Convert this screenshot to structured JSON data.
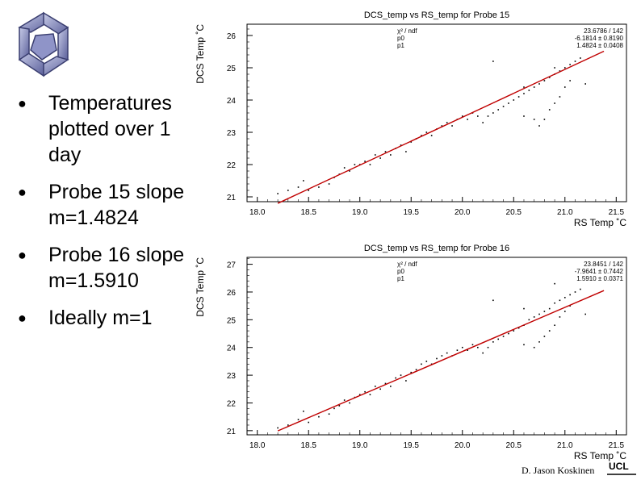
{
  "slide": {
    "bullets": [
      "Temperatures plotted over 1 day",
      "Probe 15 slope m=1.4824",
      "Probe 16 slope m=1.5910",
      "Ideally m=1"
    ],
    "author": "D. Jason Koskinen",
    "logo_icon": "star-of-david-knot-icon",
    "institution_logo_text": "UCL"
  },
  "chart_data": [
    {
      "type": "scatter",
      "title": "DCS_temp vs RS_temp for Probe 15",
      "xlabel": "RS Temp ˚C",
      "ylabel": "DCS Temp ˚C",
      "xlim": [
        17.9,
        21.6
      ],
      "ylim": [
        20.85,
        26.35
      ],
      "xticks": [
        "18.0",
        "18.5",
        "19.0",
        "19.5",
        "20.0",
        "20.5",
        "21.0",
        "21.5"
      ],
      "yticks": [
        "21",
        "22",
        "23",
        "24",
        "25",
        "26"
      ],
      "stats": [
        {
          "label": "χ² / ndf",
          "value": "23.6786 / 142"
        },
        {
          "label": "p0",
          "value": "-6.1814 ± 0.8190"
        },
        {
          "label": "p1",
          "value": "1.4824 ± 0.0408"
        }
      ],
      "fit": {
        "p0": -6.1814,
        "p1": 1.4824,
        "color": "#c00000"
      },
      "points": [
        [
          18.2,
          21.1
        ],
        [
          18.3,
          21.2
        ],
        [
          18.4,
          21.3
        ],
        [
          18.45,
          21.5
        ],
        [
          18.5,
          21.2
        ],
        [
          18.6,
          21.3
        ],
        [
          18.7,
          21.4
        ],
        [
          18.75,
          21.6
        ],
        [
          18.8,
          21.7
        ],
        [
          18.85,
          21.9
        ],
        [
          18.9,
          21.8
        ],
        [
          18.95,
          22.0
        ],
        [
          19.0,
          22.0
        ],
        [
          19.05,
          22.1
        ],
        [
          19.1,
          22.0
        ],
        [
          19.15,
          22.3
        ],
        [
          19.2,
          22.2
        ],
        [
          19.25,
          22.4
        ],
        [
          19.3,
          22.3
        ],
        [
          19.35,
          22.5
        ],
        [
          19.4,
          22.6
        ],
        [
          19.45,
          22.4
        ],
        [
          19.5,
          22.7
        ],
        [
          19.55,
          22.8
        ],
        [
          19.6,
          22.9
        ],
        [
          19.65,
          23.0
        ],
        [
          19.7,
          22.9
        ],
        [
          19.75,
          23.1
        ],
        [
          19.8,
          23.2
        ],
        [
          19.85,
          23.3
        ],
        [
          19.9,
          23.2
        ],
        [
          19.95,
          23.4
        ],
        [
          20.0,
          23.5
        ],
        [
          20.05,
          23.4
        ],
        [
          20.1,
          23.6
        ],
        [
          20.15,
          23.5
        ],
        [
          20.2,
          23.3
        ],
        [
          20.25,
          23.5
        ],
        [
          20.3,
          23.6
        ],
        [
          20.35,
          23.7
        ],
        [
          20.4,
          23.8
        ],
        [
          20.45,
          23.9
        ],
        [
          20.5,
          24.0
        ],
        [
          20.55,
          24.1
        ],
        [
          20.6,
          24.2
        ],
        [
          20.65,
          24.3
        ],
        [
          20.7,
          24.4
        ],
        [
          20.75,
          24.5
        ],
        [
          20.8,
          24.6
        ],
        [
          20.85,
          24.7
        ],
        [
          20.9,
          24.8
        ],
        [
          20.95,
          24.9
        ],
        [
          21.0,
          25.0
        ],
        [
          21.05,
          25.1
        ],
        [
          21.1,
          25.2
        ],
        [
          21.15,
          25.3
        ],
        [
          20.3,
          25.2
        ],
        [
          20.6,
          23.5
        ],
        [
          20.7,
          23.4
        ],
        [
          20.75,
          23.2
        ],
        [
          20.8,
          23.4
        ],
        [
          20.85,
          23.7
        ],
        [
          20.9,
          23.9
        ],
        [
          20.95,
          24.1
        ],
        [
          21.0,
          24.4
        ],
        [
          21.05,
          24.6
        ],
        [
          21.2,
          24.5
        ],
        [
          20.9,
          25.0
        ],
        [
          20.6,
          24.4
        ]
      ]
    },
    {
      "type": "scatter",
      "title": "DCS_temp vs RS_temp for Probe 16",
      "xlabel": "RS Temp ˚C",
      "ylabel": "DCS Temp ˚C",
      "xlim": [
        17.9,
        21.6
      ],
      "ylim": [
        20.85,
        27.25
      ],
      "xticks": [
        "18.0",
        "18.5",
        "19.0",
        "19.5",
        "20.0",
        "20.5",
        "21.0",
        "21.5"
      ],
      "yticks": [
        "21",
        "22",
        "23",
        "24",
        "25",
        "26",
        "27"
      ],
      "stats": [
        {
          "label": "χ² / ndf",
          "value": "23.8451 / 142"
        },
        {
          "label": "p0",
          "value": "-7.9641 ± 0.7442"
        },
        {
          "label": "p1",
          "value": "1.5910 ± 0.0371"
        }
      ],
      "fit": {
        "p0": -7.9641,
        "p1": 1.591,
        "color": "#c00000"
      },
      "points": [
        [
          18.2,
          21.1
        ],
        [
          18.3,
          21.2
        ],
        [
          18.4,
          21.4
        ],
        [
          18.45,
          21.7
        ],
        [
          18.5,
          21.3
        ],
        [
          18.6,
          21.5
        ],
        [
          18.7,
          21.6
        ],
        [
          18.75,
          21.8
        ],
        [
          18.8,
          21.9
        ],
        [
          18.85,
          22.1
        ],
        [
          18.9,
          22.0
        ],
        [
          18.95,
          22.2
        ],
        [
          19.0,
          22.3
        ],
        [
          19.05,
          22.4
        ],
        [
          19.1,
          22.3
        ],
        [
          19.15,
          22.6
        ],
        [
          19.2,
          22.5
        ],
        [
          19.25,
          22.7
        ],
        [
          19.3,
          22.6
        ],
        [
          19.35,
          22.9
        ],
        [
          19.4,
          23.0
        ],
        [
          19.45,
          22.8
        ],
        [
          19.5,
          23.1
        ],
        [
          19.55,
          23.2
        ],
        [
          19.6,
          23.4
        ],
        [
          19.65,
          23.5
        ],
        [
          19.7,
          23.4
        ],
        [
          19.75,
          23.6
        ],
        [
          19.8,
          23.7
        ],
        [
          19.85,
          23.8
        ],
        [
          19.9,
          23.7
        ],
        [
          19.95,
          23.9
        ],
        [
          20.0,
          24.0
        ],
        [
          20.05,
          23.9
        ],
        [
          20.1,
          24.1
        ],
        [
          20.15,
          24.0
        ],
        [
          20.2,
          23.8
        ],
        [
          20.25,
          24.0
        ],
        [
          20.3,
          24.2
        ],
        [
          20.35,
          24.3
        ],
        [
          20.4,
          24.4
        ],
        [
          20.45,
          24.5
        ],
        [
          20.5,
          24.6
        ],
        [
          20.55,
          24.7
        ],
        [
          20.6,
          24.8
        ],
        [
          20.65,
          25.0
        ],
        [
          20.7,
          25.1
        ],
        [
          20.75,
          25.2
        ],
        [
          20.8,
          25.3
        ],
        [
          20.85,
          25.4
        ],
        [
          20.9,
          25.6
        ],
        [
          20.95,
          25.7
        ],
        [
          21.0,
          25.8
        ],
        [
          21.05,
          25.9
        ],
        [
          21.1,
          26.0
        ],
        [
          21.15,
          26.1
        ],
        [
          20.3,
          25.7
        ],
        [
          20.6,
          24.1
        ],
        [
          20.7,
          24.0
        ],
        [
          20.75,
          24.2
        ],
        [
          20.8,
          24.4
        ],
        [
          20.85,
          24.6
        ],
        [
          20.9,
          24.8
        ],
        [
          20.95,
          25.1
        ],
        [
          21.0,
          25.3
        ],
        [
          21.05,
          25.5
        ],
        [
          21.2,
          25.2
        ],
        [
          20.9,
          26.3
        ],
        [
          20.6,
          25.4
        ]
      ]
    }
  ]
}
